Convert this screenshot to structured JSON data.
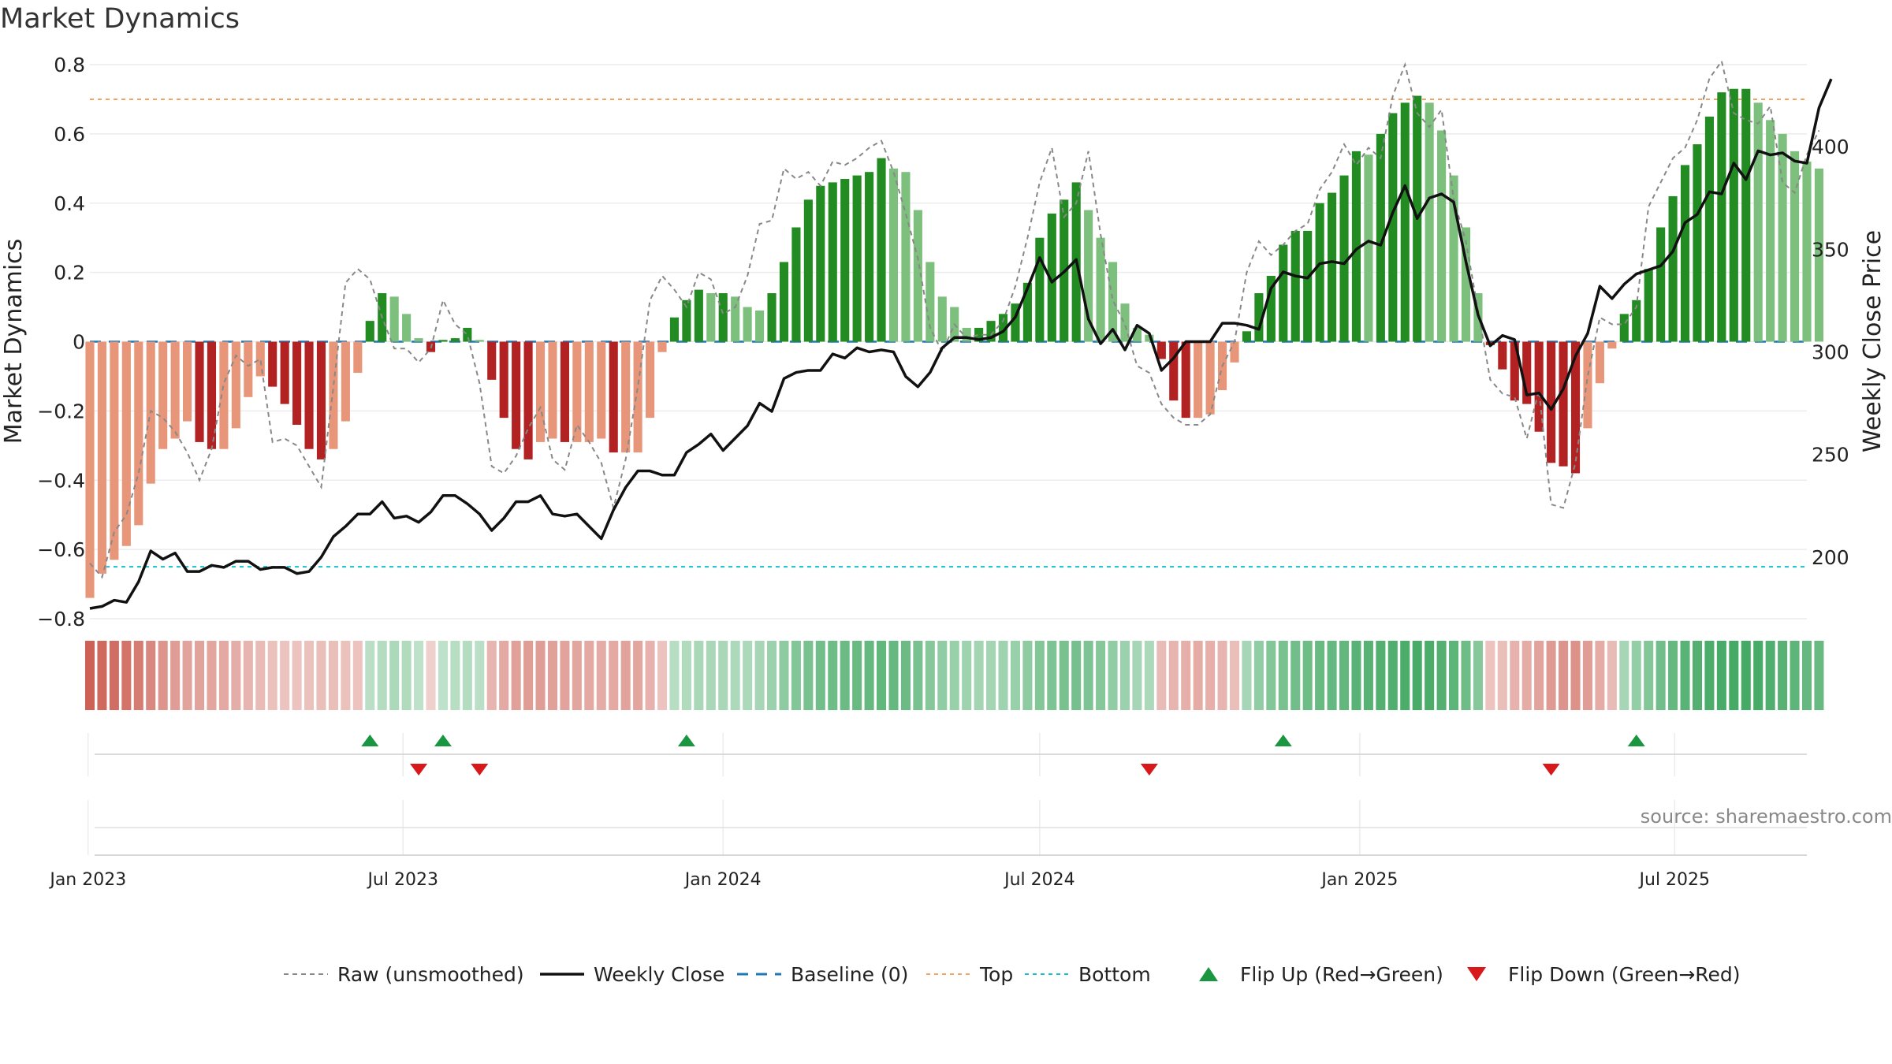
{
  "title": "Market Dynamics",
  "source": "source: sharemaestro.com",
  "colors": {
    "strong_green": "#228B22",
    "light_green": "#7DBF7D",
    "strong_red": "#B22222",
    "light_red": "#E8967A",
    "close": "#111111",
    "raw": "#888888",
    "baseline": "#1f77b4",
    "top": "#F4A460",
    "bottom": "#17BECF",
    "flip_up": "#1a9641",
    "flip_down": "#d7191c"
  },
  "chart_data": {
    "type": "bar",
    "title": "Market Dynamics",
    "ylabel": "Market Dynamics",
    "y2label": "Weekly Close Price",
    "ylim": [
      -0.8,
      0.8
    ],
    "yticks": [
      "0.8",
      "0.6",
      "0.4",
      "0.2",
      "0",
      "−0.2",
      "−0.4",
      "−0.6",
      "−0.8"
    ],
    "y2lim": [
      170,
      440
    ],
    "y2ticks": [
      "400",
      "350",
      "300",
      "250",
      "200"
    ],
    "xaxis": {
      "start": "2023-01-02",
      "end": "2025-09-15",
      "ticks": [
        {
          "date": "2023-01-01",
          "label": "Jan 2023"
        },
        {
          "date": "2023-07-01",
          "label": "Jul 2023"
        },
        {
          "date": "2024-01-01",
          "label": "Jan 2024"
        },
        {
          "date": "2024-07-01",
          "label": "Jul 2024"
        },
        {
          "date": "2025-01-01",
          "label": "Jan 2025"
        },
        {
          "date": "2025-07-01",
          "label": "Jul 2025"
        }
      ]
    },
    "top_level": 0.7,
    "bottom_level": -0.65,
    "baseline": 0,
    "grid": true,
    "legend": {
      "position": "bottom",
      "entries": [
        {
          "label": "Raw (unsmoothed)",
          "style": "raw"
        },
        {
          "label": "Weekly Close",
          "style": "close"
        },
        {
          "label": "Baseline (0)",
          "style": "baseline"
        },
        {
          "label": "Top",
          "style": "top"
        },
        {
          "label": "Bottom",
          "style": "bottom"
        },
        {
          "label": "Flip Up (Red→Green)",
          "style": "flip_up"
        },
        {
          "label": "Flip Down (Green→Red)",
          "style": "flip_down"
        }
      ]
    },
    "bars": {
      "start": "2023-01-02",
      "interval_days": 7,
      "values": [
        -0.74,
        -0.67,
        -0.63,
        -0.59,
        -0.53,
        -0.41,
        -0.31,
        -0.28,
        -0.23,
        -0.29,
        -0.31,
        -0.31,
        -0.25,
        -0.16,
        -0.1,
        -0.13,
        -0.18,
        -0.24,
        -0.31,
        -0.34,
        -0.31,
        -0.23,
        -0.09,
        0.06,
        0.14,
        0.13,
        0.08,
        0.01,
        -0.03,
        0.005,
        0.01,
        0.04,
        0.005,
        -0.11,
        -0.22,
        -0.31,
        -0.34,
        -0.29,
        -0.28,
        -0.29,
        -0.29,
        -0.29,
        -0.28,
        -0.32,
        -0.32,
        -0.32,
        -0.22,
        -0.03,
        0.07,
        0.12,
        0.15,
        0.14,
        0.14,
        0.13,
        0.1,
        0.09,
        0.14,
        0.23,
        0.33,
        0.41,
        0.45,
        0.46,
        0.47,
        0.48,
        0.49,
        0.53,
        0.5,
        0.49,
        0.38,
        0.23,
        0.13,
        0.1,
        0.04,
        0.04,
        0.06,
        0.08,
        0.11,
        0.17,
        0.3,
        0.37,
        0.41,
        0.46,
        0.38,
        0.3,
        0.23,
        0.11,
        0.04,
        0.02,
        -0.05,
        -0.17,
        -0.22,
        -0.22,
        -0.21,
        -0.14,
        -0.06,
        0.03,
        0.14,
        0.19,
        0.28,
        0.32,
        0.32,
        0.4,
        0.43,
        0.48,
        0.55,
        0.54,
        0.6,
        0.66,
        0.69,
        0.71,
        0.69,
        0.61,
        0.48,
        0.33,
        0.14,
        -0.01,
        -0.08,
        -0.17,
        -0.18,
        -0.26,
        -0.35,
        -0.36,
        -0.38,
        -0.25,
        -0.12,
        -0.02,
        0.08,
        0.12,
        0.21,
        0.33,
        0.42,
        0.51,
        0.57,
        0.65,
        0.72,
        0.73,
        0.73,
        0.69,
        0.64,
        0.6,
        0.55,
        0.52,
        0.5
      ],
      "strength": [
        0.86,
        0.82,
        0.78,
        0.74,
        0.68,
        0.6,
        0.52,
        0.46,
        0.42,
        0.42,
        0.4,
        0.38,
        0.35,
        0.3,
        0.26,
        0.22,
        0.2,
        0.2,
        0.22,
        0.24,
        0.24,
        0.22,
        0.2,
        0.2,
        0.24,
        0.28,
        0.26,
        0.18,
        0.12,
        0.18,
        0.22,
        0.24,
        0.2,
        0.3,
        0.38,
        0.44,
        0.46,
        0.46,
        0.44,
        0.42,
        0.4,
        0.38,
        0.36,
        0.38,
        0.42,
        0.4,
        0.32,
        0.2,
        0.22,
        0.26,
        0.3,
        0.3,
        0.3,
        0.28,
        0.28,
        0.32,
        0.38,
        0.46,
        0.52,
        0.58,
        0.62,
        0.64,
        0.66,
        0.68,
        0.7,
        0.72,
        0.7,
        0.66,
        0.58,
        0.5,
        0.44,
        0.4,
        0.36,
        0.34,
        0.34,
        0.36,
        0.4,
        0.46,
        0.52,
        0.56,
        0.58,
        0.6,
        0.56,
        0.5,
        0.44,
        0.38,
        0.32,
        0.28,
        0.26,
        0.3,
        0.34,
        0.36,
        0.34,
        0.3,
        0.24,
        0.32,
        0.44,
        0.52,
        0.58,
        0.62,
        0.64,
        0.68,
        0.7,
        0.72,
        0.76,
        0.78,
        0.8,
        0.82,
        0.84,
        0.86,
        0.84,
        0.8,
        0.74,
        0.64,
        0.5,
        0.2,
        0.24,
        0.32,
        0.36,
        0.42,
        0.48,
        0.52,
        0.54,
        0.46,
        0.36,
        0.26,
        0.32,
        0.42,
        0.52,
        0.62,
        0.7,
        0.76,
        0.8,
        0.84,
        0.86,
        0.88,
        0.88,
        0.86,
        0.82,
        0.78,
        0.74,
        0.7,
        0.68
      ]
    },
    "raw": {
      "start": "2023-01-02",
      "interval_days": 7,
      "values": [
        -0.64,
        -0.68,
        -0.55,
        -0.5,
        -0.38,
        -0.2,
        -0.22,
        -0.26,
        -0.32,
        -0.4,
        -0.31,
        -0.12,
        -0.04,
        -0.07,
        -0.05,
        -0.29,
        -0.28,
        -0.3,
        -0.36,
        -0.42,
        -0.13,
        0.17,
        0.21,
        0.18,
        0.07,
        -0.02,
        -0.02,
        -0.06,
        -0.02,
        0.12,
        0.05,
        0.02,
        -0.12,
        -0.36,
        -0.38,
        -0.33,
        -0.25,
        -0.19,
        -0.34,
        -0.37,
        -0.24,
        -0.29,
        -0.35,
        -0.48,
        -0.34,
        -0.13,
        0.12,
        0.19,
        0.15,
        0.1,
        0.2,
        0.18,
        0.08,
        0.1,
        0.19,
        0.34,
        0.35,
        0.5,
        0.47,
        0.49,
        0.45,
        0.52,
        0.51,
        0.53,
        0.56,
        0.58,
        0.49,
        0.37,
        0.24,
        0.04,
        -0.03,
        0.05,
        0.01,
        0.02,
        0.02,
        0.06,
        0.16,
        0.3,
        0.46,
        0.56,
        0.36,
        0.4,
        0.55,
        0.31,
        0.12,
        0.05,
        -0.07,
        -0.09,
        -0.18,
        -0.22,
        -0.24,
        -0.24,
        -0.21,
        -0.07,
        0.0,
        0.2,
        0.29,
        0.25,
        0.28,
        0.32,
        0.34,
        0.44,
        0.49,
        0.57,
        0.51,
        0.56,
        0.53,
        0.71,
        0.8,
        0.66,
        0.62,
        0.67,
        0.41,
        0.29,
        0.09,
        -0.11,
        -0.15,
        -0.16,
        -0.28,
        -0.14,
        -0.47,
        -0.48,
        -0.35,
        -0.1,
        0.07,
        0.05,
        0.05,
        0.1,
        0.39,
        0.46,
        0.53,
        0.56,
        0.64,
        0.76,
        0.81,
        0.66,
        0.64,
        0.63,
        0.68,
        0.46,
        0.43,
        0.54,
        0.61
      ]
    },
    "close": {
      "start": "2023-01-02",
      "interval_days": 7,
      "values": [
        175,
        176,
        179,
        178,
        188,
        203,
        199,
        202,
        193,
        193,
        196,
        195,
        198,
        198,
        194,
        195,
        195,
        192,
        193,
        200,
        210,
        215,
        221,
        221,
        227,
        219,
        220,
        217,
        222,
        230,
        230,
        226,
        221,
        213,
        219,
        227,
        227,
        230,
        221,
        220,
        221,
        215,
        209,
        223,
        234,
        242,
        242,
        240,
        240,
        251,
        255,
        260,
        252,
        258,
        264,
        275,
        271,
        287,
        290,
        291,
        291,
        299,
        297,
        302,
        300,
        301,
        300,
        288,
        283,
        290,
        302,
        307,
        307,
        306,
        307,
        310,
        317,
        331,
        346,
        334,
        339,
        345,
        316,
        304,
        311,
        301,
        313,
        309,
        291,
        297,
        305,
        305,
        305,
        314,
        314,
        313,
        311,
        331,
        339,
        337,
        336,
        343,
        344,
        343,
        350,
        354,
        352,
        368,
        381,
        365,
        375,
        377,
        373,
        344,
        318,
        303,
        308,
        306,
        279,
        280,
        272,
        282,
        298,
        309,
        332,
        326,
        333,
        338,
        340,
        342,
        349,
        363,
        367,
        378,
        377,
        392,
        384,
        398,
        396,
        397,
        393,
        392,
        419,
        433
      ]
    },
    "flip_up": [
      "2023-06-12",
      "2023-07-24",
      "2023-12-11",
      "2024-11-18",
      "2025-06-09"
    ],
    "flip_down": [
      "2023-07-10",
      "2023-08-14",
      "2024-09-02",
      "2025-04-21"
    ]
  }
}
